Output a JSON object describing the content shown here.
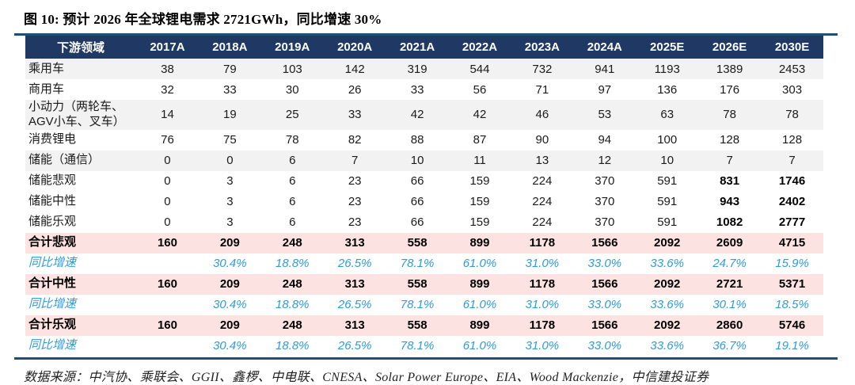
{
  "figure": {
    "title": "图 10: 预计 2026 年全球锂电需求 2721GWh，同比增速 30%",
    "source_note": "数据来源：中汽协、乘联会、GGII、鑫椤、中电联、CNESA、Solar Power Europe、EIA、Wood Mackenzie，中信建投证券"
  },
  "colors": {
    "header_bg": "#1f3864",
    "rule_navy": "#1f4e79",
    "stripe_gray": "#f2f2f2",
    "total_pink": "#fce3e1",
    "growth_blue": "#2f9bdb",
    "highlight_blue": "#e8ecf4"
  },
  "chart_data": {
    "type": "table",
    "columns": [
      "下游领域",
      "2017A",
      "2018A",
      "2019A",
      "2020A",
      "2021A",
      "2022A",
      "2023A",
      "2024A",
      "2025E",
      "2026E",
      "2030E"
    ],
    "rows": [
      {
        "label": "乘用车",
        "style": "stripe",
        "values": [
          "38",
          "79",
          "103",
          "142",
          "319",
          "544",
          "732",
          "941",
          "1193",
          "1389",
          "2453"
        ]
      },
      {
        "label": "商用车",
        "style": "plain",
        "values": [
          "32",
          "33",
          "30",
          "26",
          "33",
          "56",
          "71",
          "97",
          "136",
          "176",
          "303"
        ]
      },
      {
        "label": "小动力（两轮车、AGV小车、叉车）",
        "style": "stripe",
        "values": [
          "14",
          "19",
          "25",
          "33",
          "42",
          "42",
          "46",
          "53",
          "63",
          "78",
          "78"
        ]
      },
      {
        "label": "消费锂电",
        "style": "plain",
        "values": [
          "76",
          "75",
          "78",
          "82",
          "88",
          "87",
          "90",
          "94",
          "100",
          "128",
          "128"
        ]
      },
      {
        "label": "储能（通信）",
        "style": "stripe",
        "values": [
          "0",
          "0",
          "6",
          "7",
          "10",
          "11",
          "13",
          "12",
          "10",
          "7",
          "7"
        ]
      },
      {
        "label": "储能悲观",
        "style": "plain",
        "highlight_last2": true,
        "values": [
          "0",
          "3",
          "6",
          "23",
          "66",
          "159",
          "224",
          "370",
          "591",
          "831",
          "1746"
        ]
      },
      {
        "label": "储能中性",
        "style": "plain",
        "highlight_last2": true,
        "values": [
          "0",
          "3",
          "6",
          "23",
          "66",
          "159",
          "224",
          "370",
          "591",
          "943",
          "2402"
        ]
      },
      {
        "label": "储能乐观",
        "style": "plain",
        "highlight_last2": true,
        "values": [
          "0",
          "3",
          "6",
          "23",
          "66",
          "159",
          "224",
          "370",
          "591",
          "1082",
          "2777"
        ]
      },
      {
        "label": "合计悲观",
        "style": "total",
        "values": [
          "160",
          "209",
          "248",
          "313",
          "558",
          "899",
          "1178",
          "1566",
          "2092",
          "2609",
          "4715"
        ]
      },
      {
        "label": "同比增速",
        "style": "growth",
        "values": [
          "",
          "30.4%",
          "18.8%",
          "26.5%",
          "78.1%",
          "61.0%",
          "31.0%",
          "33.0%",
          "33.6%",
          "24.7%",
          "15.9%"
        ]
      },
      {
        "label": "合计中性",
        "style": "total",
        "values": [
          "160",
          "209",
          "248",
          "313",
          "558",
          "899",
          "1178",
          "1566",
          "2092",
          "2721",
          "5371"
        ]
      },
      {
        "label": "同比增速",
        "style": "growth",
        "values": [
          "",
          "30.4%",
          "18.8%",
          "26.5%",
          "78.1%",
          "61.0%",
          "31.0%",
          "33.0%",
          "33.6%",
          "30.1%",
          "18.5%"
        ]
      },
      {
        "label": "合计乐观",
        "style": "total",
        "values": [
          "160",
          "209",
          "248",
          "313",
          "558",
          "899",
          "1178",
          "1566",
          "2092",
          "2860",
          "5746"
        ]
      },
      {
        "label": "同比增速",
        "style": "growth",
        "values": [
          "",
          "30.4%",
          "18.8%",
          "26.5%",
          "78.1%",
          "61.0%",
          "31.0%",
          "33.0%",
          "33.6%",
          "36.7%",
          "19.1%"
        ]
      }
    ]
  }
}
